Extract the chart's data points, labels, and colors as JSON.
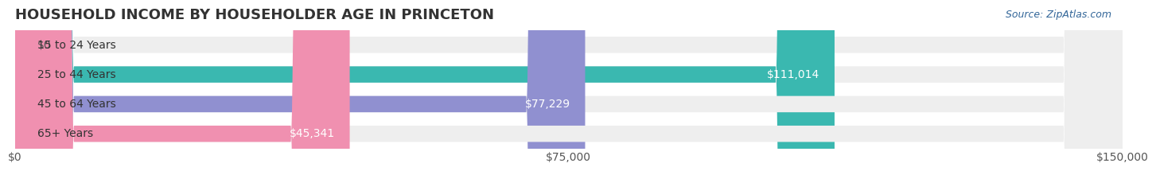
{
  "title": "HOUSEHOLD INCOME BY HOUSEHOLDER AGE IN PRINCETON",
  "source": "Source: ZipAtlas.com",
  "categories": [
    "15 to 24 Years",
    "25 to 44 Years",
    "45 to 64 Years",
    "65+ Years"
  ],
  "values": [
    0,
    111014,
    77229,
    45341
  ],
  "labels": [
    "$0",
    "$111,014",
    "$77,229",
    "$45,341"
  ],
  "bar_colors": [
    "#d4a8c7",
    "#3ab8b0",
    "#9090d0",
    "#f090b0"
  ],
  "bar_bg_color": "#eeeeee",
  "background_color": "#ffffff",
  "xlim": [
    0,
    150000
  ],
  "xticks": [
    0,
    75000,
    150000
  ],
  "xtick_labels": [
    "$0",
    "$75,000",
    "$150,000"
  ],
  "title_fontsize": 13,
  "bar_height": 0.55,
  "label_fontsize": 10,
  "source_fontsize": 9,
  "title_color": "#333333",
  "source_color": "#336699",
  "tick_color": "#555555",
  "label_color_inside": "#ffffff",
  "label_color_outside": "#555555"
}
